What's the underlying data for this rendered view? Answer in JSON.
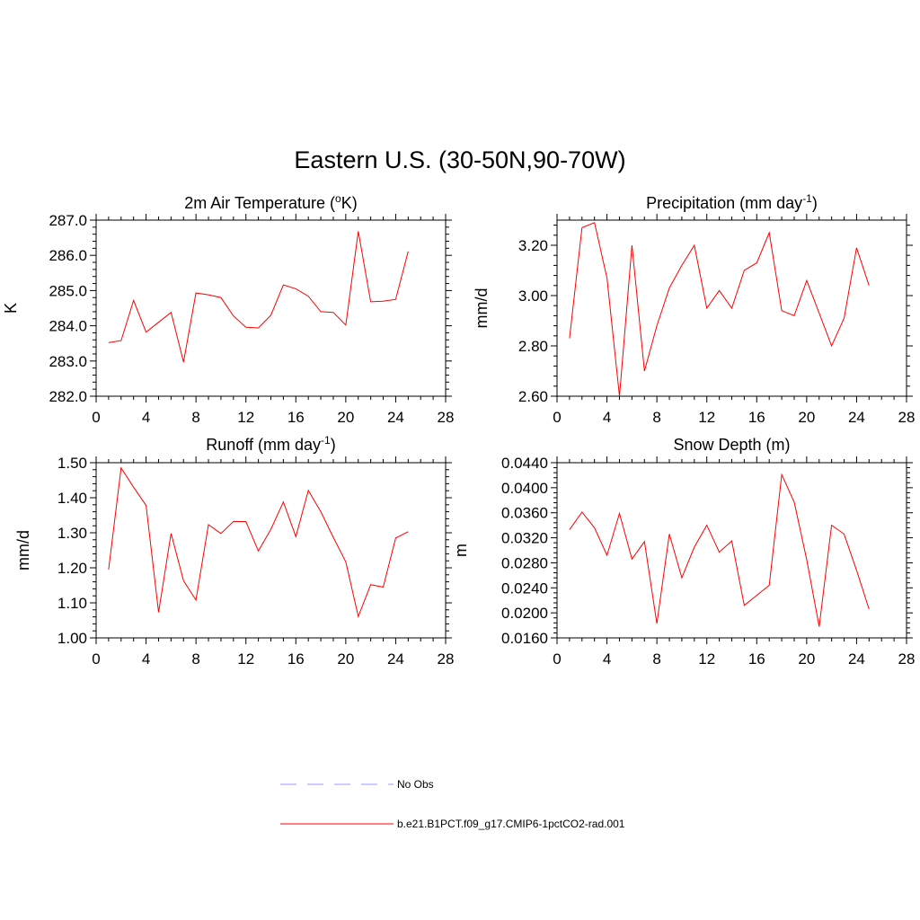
{
  "figure": {
    "title": "Eastern U.S. (30-50N,90-70W)"
  },
  "chart_data": [
    {
      "type": "line",
      "title_main": "2m Air Temperature (",
      "title_sup": "o",
      "title_tail": "K)",
      "ylabel": "K",
      "xlim": [
        0,
        28
      ],
      "ylim": [
        282.0,
        287.0
      ],
      "xticks": [
        0,
        4,
        8,
        12,
        16,
        20,
        24,
        28
      ],
      "yticks": [
        "282.0",
        "283.0",
        "284.0",
        "285.0",
        "286.0",
        "287.0"
      ],
      "series": [
        {
          "color": "#ff0000",
          "x": [
            1,
            2,
            3,
            4,
            5,
            6,
            7,
            8,
            9,
            10,
            11,
            12,
            13,
            14,
            15,
            16,
            17,
            18,
            19,
            20,
            21,
            22,
            23,
            24,
            25
          ],
          "y": [
            283.52,
            283.58,
            284.72,
            283.82,
            284.1,
            284.38,
            282.97,
            284.93,
            284.88,
            284.8,
            284.28,
            283.96,
            283.94,
            284.3,
            285.16,
            285.05,
            284.84,
            284.4,
            284.38,
            284.02,
            286.68,
            284.68,
            284.7,
            284.75,
            286.11
          ]
        }
      ]
    },
    {
      "type": "line",
      "title_main": "Precipitation (mm day",
      "title_sup": "-1",
      "title_tail": ")",
      "ylabel": "mm/d",
      "xlim": [
        0,
        28
      ],
      "ylim": [
        2.6,
        3.3
      ],
      "xticks": [
        0,
        4,
        8,
        12,
        16,
        20,
        24,
        28
      ],
      "yticks": [
        "2.60",
        "2.80",
        "3.00",
        "3.20"
      ],
      "series": [
        {
          "color": "#ff0000",
          "x": [
            1,
            2,
            3,
            4,
            5,
            6,
            7,
            8,
            9,
            10,
            11,
            12,
            13,
            14,
            15,
            16,
            17,
            18,
            19,
            20,
            21,
            22,
            23,
            24,
            25
          ],
          "y": [
            2.83,
            3.27,
            3.29,
            3.07,
            2.6,
            3.2,
            2.7,
            2.88,
            3.03,
            3.12,
            3.2,
            2.95,
            3.02,
            2.95,
            3.1,
            3.13,
            3.25,
            2.94,
            2.92,
            3.06,
            2.93,
            2.8,
            2.91,
            3.19,
            3.04
          ]
        }
      ]
    },
    {
      "type": "line",
      "title_main": "Runoff (mm day",
      "title_sup": "-1",
      "title_tail": ")",
      "ylabel": "mm/d",
      "xlim": [
        0,
        28
      ],
      "ylim": [
        1.0,
        1.5
      ],
      "xticks": [
        0,
        4,
        8,
        12,
        16,
        20,
        24,
        28
      ],
      "yticks": [
        "1.00",
        "1.10",
        "1.20",
        "1.30",
        "1.40",
        "1.50"
      ],
      "series": [
        {
          "color": "#ff0000",
          "x": [
            1,
            2,
            3,
            4,
            5,
            6,
            7,
            8,
            9,
            10,
            11,
            12,
            13,
            14,
            15,
            16,
            17,
            18,
            19,
            20,
            21,
            22,
            23,
            24,
            25
          ],
          "y": [
            1.195,
            1.485,
            1.43,
            1.378,
            1.073,
            1.298,
            1.163,
            1.108,
            1.323,
            1.298,
            1.332,
            1.332,
            1.248,
            1.31,
            1.388,
            1.289,
            1.421,
            1.36,
            1.287,
            1.217,
            1.061,
            1.152,
            1.145,
            1.285,
            1.303
          ]
        }
      ]
    },
    {
      "type": "line",
      "title_main": "Snow Depth (m)",
      "title_sup": "",
      "title_tail": "",
      "ylabel": "m",
      "xlim": [
        0,
        28
      ],
      "ylim": [
        0.016,
        0.044
      ],
      "xticks": [
        0,
        4,
        8,
        12,
        16,
        20,
        24,
        28
      ],
      "yticks": [
        "0.0160",
        "0.0200",
        "0.0240",
        "0.0280",
        "0.0320",
        "0.0360",
        "0.0400",
        "0.0440"
      ],
      "series": [
        {
          "color": "#ff0000",
          "x": [
            1,
            2,
            3,
            4,
            5,
            6,
            7,
            8,
            9,
            10,
            11,
            12,
            13,
            14,
            15,
            16,
            17,
            18,
            19,
            20,
            21,
            22,
            23,
            24,
            25
          ],
          "y": [
            0.0333,
            0.0361,
            0.0336,
            0.0292,
            0.0359,
            0.0286,
            0.0314,
            0.0183,
            0.0326,
            0.0256,
            0.0305,
            0.034,
            0.0297,
            0.0315,
            0.0212,
            0.0228,
            0.0244,
            0.0421,
            0.0377,
            0.0285,
            0.0178,
            0.034,
            0.0326,
            0.0268,
            0.0206
          ]
        }
      ]
    }
  ],
  "legend": [
    {
      "label": "No Obs",
      "color": "#9999ff",
      "style": "dashed"
    },
    {
      "label": "b.e21.B1PCT.f09_g17.CMIP6-1pctCO2-rad.001",
      "color": "#ff0000",
      "style": "solid"
    }
  ]
}
